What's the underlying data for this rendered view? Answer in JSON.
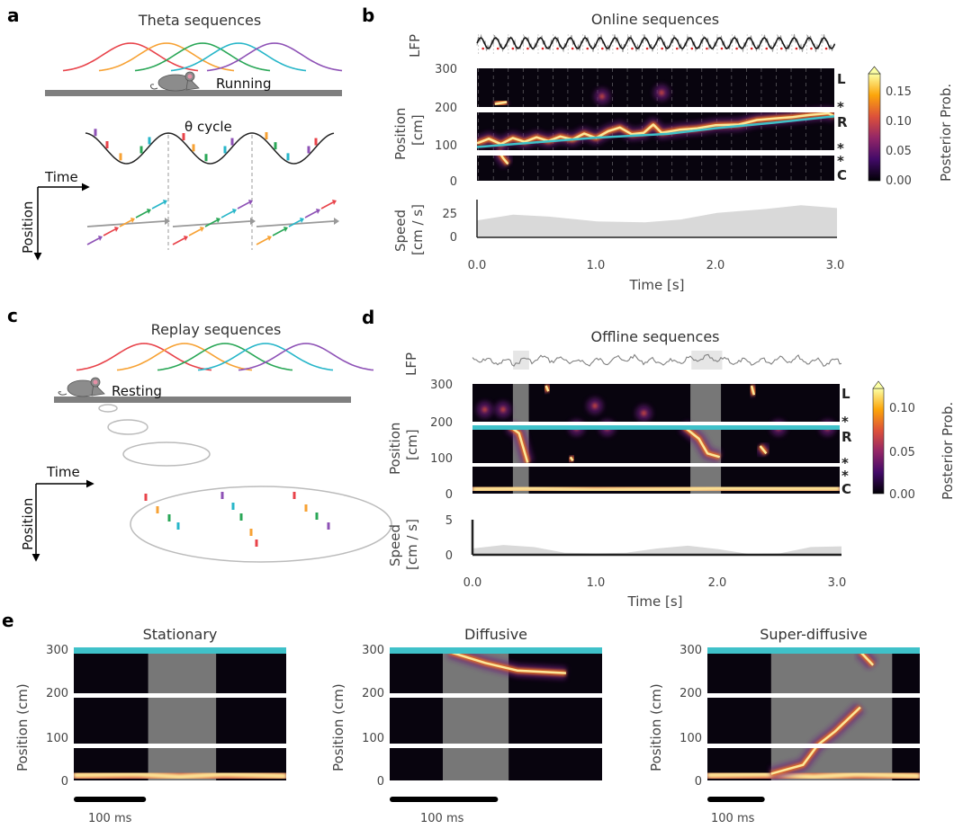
{
  "panels": {
    "a": {
      "label": "a",
      "title": "Theta sequences",
      "mouse_state": "Running",
      "cycle_label": "θ cycle",
      "time_axis": "Time",
      "position_axis": "Position"
    },
    "b": {
      "label": "b",
      "title": "Online sequences",
      "lfp_label": "LFP",
      "ylabel_1": "Position",
      "ylabel_2": "[cm]",
      "speed_label_1": "Speed",
      "speed_label_2": "[cm / s]",
      "xlabel": "Time [s]",
      "colorbar_label": "Posterior Prob."
    },
    "c": {
      "label": "c",
      "title": "Replay sequences",
      "mouse_state": "Resting",
      "time_axis": "Time",
      "position_axis": "Position"
    },
    "d": {
      "label": "d",
      "title": "Offline sequences",
      "lfp_label": "LFP",
      "ylabel_1": "Position",
      "ylabel_2": "[cm]",
      "speed_label_1": "Speed",
      "speed_label_2": "[cm / s]",
      "xlabel": "Time [s]",
      "colorbar_label": "Posterior Prob."
    },
    "e": {
      "label": "e",
      "ylabel": "Position (cm)",
      "scalebar": "100 ms",
      "titles": [
        "Stationary",
        "Diffusive",
        "Super-diffusive"
      ]
    }
  },
  "segment_labels": [
    "L",
    "*",
    "R",
    "*",
    "*",
    "C"
  ],
  "colors": {
    "tuning": [
      "#e8434a",
      "#f7a234",
      "#2aa757",
      "#27b6c9",
      "#8e52b6"
    ],
    "actual_position": "#3fc1c9",
    "speed_fill": "#d9d9d9",
    "inferno": [
      "#000004",
      "#420a68",
      "#932667",
      "#dd513a",
      "#fca50a",
      "#fcffa4"
    ]
  },
  "chart_data": [
    {
      "id": "b",
      "type": "heatmap",
      "title": "Online sequences",
      "xlabel": "Time [s]",
      "ylabel": "Position [cm]",
      "xlim": [
        0,
        3
      ],
      "ylim": [
        0,
        300
      ],
      "xticks": [
        "0.0",
        "1.0",
        "2.0",
        "3.0"
      ],
      "yticks": [
        "300",
        "200",
        "100",
        "0"
      ],
      "colorbar": {
        "label": "Posterior Prob.",
        "range": [
          0,
          0.18
        ],
        "ticks": [
          "0.15",
          "0.10",
          "0.05",
          "0.00"
        ]
      },
      "actual_position": [
        [
          0,
          90
        ],
        [
          1.0,
          115
        ],
        [
          1.6,
          125
        ],
        [
          2.0,
          140
        ],
        [
          2.5,
          155
        ],
        [
          3.0,
          172
        ]
      ],
      "decoded_traces": [
        [
          [
            0,
            100
          ],
          [
            0.1,
            112
          ],
          [
            0.2,
            98
          ],
          [
            0.3,
            114
          ],
          [
            0.4,
            104
          ],
          [
            0.5,
            116
          ],
          [
            0.6,
            106
          ],
          [
            0.7,
            118
          ],
          [
            0.8,
            110
          ],
          [
            0.9,
            126
          ],
          [
            1.0,
            114
          ],
          [
            1.1,
            132
          ],
          [
            1.2,
            142
          ],
          [
            1.3,
            124
          ],
          [
            1.4,
            128
          ],
          [
            1.48,
            150
          ],
          [
            1.55,
            128
          ],
          [
            1.7,
            136
          ],
          [
            1.85,
            140
          ],
          [
            2.0,
            148
          ],
          [
            2.2,
            150
          ],
          [
            2.35,
            162
          ],
          [
            2.5,
            166
          ],
          [
            2.65,
            170
          ],
          [
            2.8,
            176
          ],
          [
            2.95,
            180
          ],
          [
            3.0,
            172
          ]
        ],
        [
          [
            0.18,
            80
          ],
          [
            0.22,
            60
          ],
          [
            0.26,
            45
          ]
        ],
        [
          [
            0.15,
            205
          ],
          [
            0.25,
            210
          ]
        ]
      ],
      "spots": [
        [
          1.55,
          235
        ],
        [
          1.05,
          225
        ]
      ],
      "speed": {
        "ylabel": "Speed [cm / s]",
        "yticks": [
          "25",
          "0"
        ],
        "t": [
          0,
          0.3,
          0.6,
          1.0,
          1.4,
          1.7,
          2.0,
          2.4,
          2.7,
          3.0
        ],
        "v": [
          18,
          24,
          22,
          17,
          16,
          19,
          26,
          30,
          34,
          31
        ]
      }
    },
    {
      "id": "d",
      "type": "heatmap",
      "title": "Offline sequences",
      "xlabel": "Time [s]",
      "ylabel": "Position [cm]",
      "xlim": [
        0,
        3
      ],
      "ylim": [
        0,
        300
      ],
      "xticks": [
        "0.0",
        "1.0",
        "2.0",
        "3.0"
      ],
      "yticks": [
        "300",
        "200",
        "100",
        "0"
      ],
      "colorbar": {
        "label": "Posterior Prob.",
        "range": [
          0,
          0.12
        ],
        "ticks": [
          "0.10",
          "0.05",
          "0.00"
        ]
      },
      "replay_windows": [
        [
          0.33,
          0.46
        ],
        [
          1.78,
          2.03
        ]
      ],
      "decoded_traces": [
        [
          [
            0.3,
            185
          ],
          [
            0.38,
            165
          ],
          [
            0.42,
            120
          ],
          [
            0.45,
            85
          ]
        ],
        [
          [
            1.72,
            185
          ],
          [
            1.85,
            150
          ],
          [
            1.92,
            110
          ],
          [
            2.02,
            100
          ]
        ],
        [
          [
            0.6,
            295
          ],
          [
            0.62,
            280
          ]
        ],
        [
          [
            2.28,
            295
          ],
          [
            2.3,
            270
          ]
        ],
        [
          [
            0.8,
            100
          ],
          [
            0.82,
            90
          ]
        ],
        [
          [
            2.35,
            130
          ],
          [
            2.4,
            110
          ]
        ]
      ],
      "bottom_band": [
        [
          0,
          12,
          0.6
        ],
        [
          0.5,
          14,
          0.7
        ],
        [
          1.0,
          10,
          0.6
        ],
        [
          1.6,
          12,
          0.8
        ],
        [
          2.1,
          15,
          0.9
        ],
        [
          2.55,
          14,
          1.0
        ],
        [
          3.0,
          14,
          1.0
        ]
      ],
      "spots": [
        [
          0.1,
          230
        ],
        [
          0.25,
          230
        ],
        [
          1.0,
          240
        ],
        [
          1.4,
          220
        ],
        [
          2.9,
          180
        ],
        [
          2.5,
          180
        ],
        [
          1.1,
          180
        ],
        [
          0.85,
          180
        ]
      ],
      "speed": {
        "ylabel": "Speed [cm / s]",
        "yticks": [
          "5",
          "0"
        ],
        "t": [
          0,
          0.25,
          0.5,
          0.75,
          1.0,
          1.25,
          1.5,
          1.75,
          2.0,
          2.25,
          2.5,
          2.75,
          3.0
        ],
        "v": [
          0.9,
          1.4,
          1.1,
          0.3,
          0.2,
          0.3,
          0.9,
          1.3,
          0.8,
          0.1,
          0.2,
          1.1,
          1.2
        ]
      }
    },
    {
      "id": "e",
      "type": "heatmap",
      "ylabel": "Position (cm)",
      "ylim": [
        0,
        300
      ],
      "yticks": [
        "300",
        "200",
        "100",
        "0"
      ],
      "panels": [
        {
          "title": "Stationary",
          "replay_window": [
            0.35,
            0.67
          ],
          "traces": [],
          "bottom_band": true,
          "scalebar_fraction": 0.34
        },
        {
          "title": "Diffusive",
          "replay_window": [
            0.25,
            0.56
          ],
          "traces": [
            [
              [
                0.28,
                290
              ],
              [
                0.45,
                265
              ],
              [
                0.6,
                248
              ],
              [
                0.83,
                242
              ]
            ]
          ],
          "bottom_band": false,
          "scalebar_fraction": 0.51
        },
        {
          "title": "Super-diffusive",
          "replay_window": [
            0.3,
            0.87
          ],
          "traces": [
            [
              [
                0.3,
                15
              ],
              [
                0.45,
                35
              ],
              [
                0.52,
                80
              ],
              [
                0.6,
                110
              ],
              [
                0.72,
                165
              ]
            ],
            [
              [
                0.72,
                290
              ],
              [
                0.78,
                260
              ]
            ]
          ],
          "bottom_band": true,
          "scalebar_fraction": 0.27
        }
      ]
    }
  ]
}
